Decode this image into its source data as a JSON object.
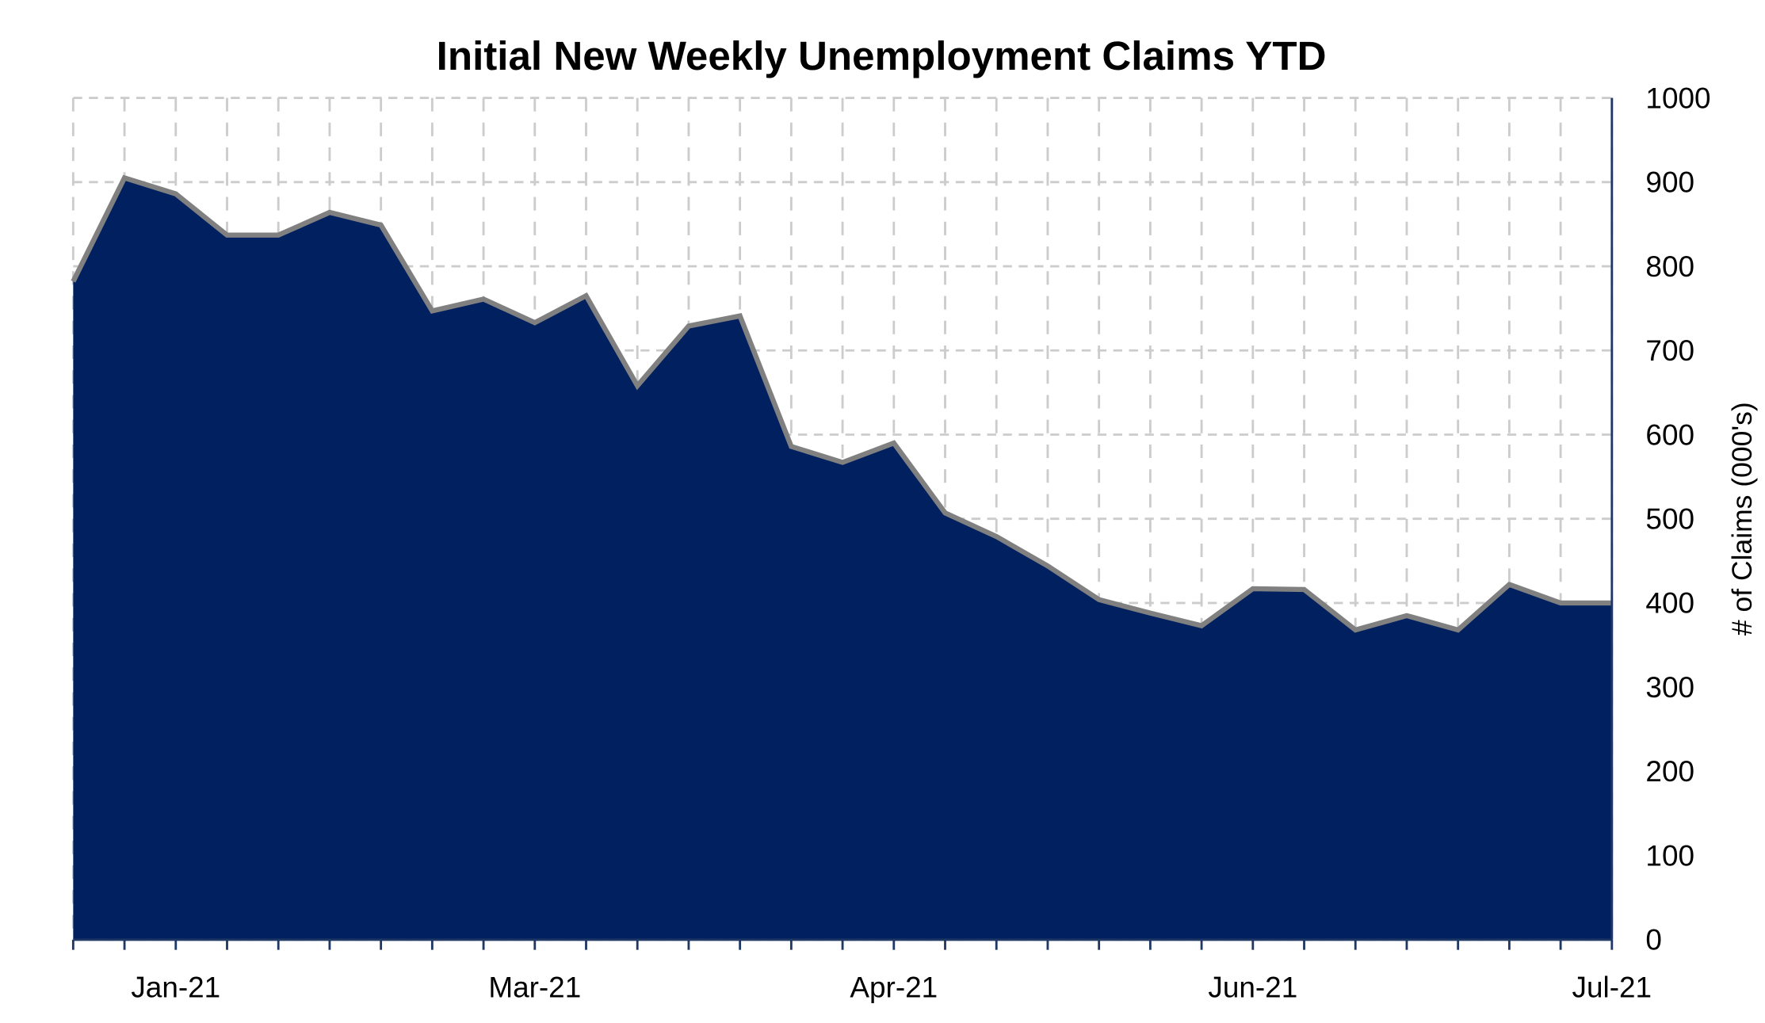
{
  "chart_data": {
    "type": "area",
    "title": "Initial New Weekly Unemployment Claims YTD",
    "xlabel": "",
    "ylabel": "# of Claims (000's)",
    "ylim": [
      0,
      1000
    ],
    "yticks": [
      0,
      100,
      200,
      300,
      400,
      500,
      600,
      700,
      800,
      900,
      1000
    ],
    "y_axis_side": "right",
    "grid": true,
    "x_tick_labels": [
      {
        "index": 2,
        "label": "Jan-21"
      },
      {
        "index": 9,
        "label": "Mar-21"
      },
      {
        "index": 16,
        "label": "Apr-21"
      },
      {
        "index": 23,
        "label": "Jun-21"
      },
      {
        "index": 30,
        "label": "Jul-21"
      }
    ],
    "values": [
      782,
      905,
      886,
      837,
      837,
      864,
      849,
      747,
      761,
      733,
      765,
      658,
      729,
      741,
      586,
      567,
      590,
      507,
      479,
      444,
      404,
      388,
      373,
      417,
      416,
      368,
      385,
      368,
      422,
      400,
      400
    ],
    "colors": {
      "fill": "#002060",
      "line": "#808080",
      "grid": "#cccccc",
      "axis": "#1f3864"
    }
  }
}
